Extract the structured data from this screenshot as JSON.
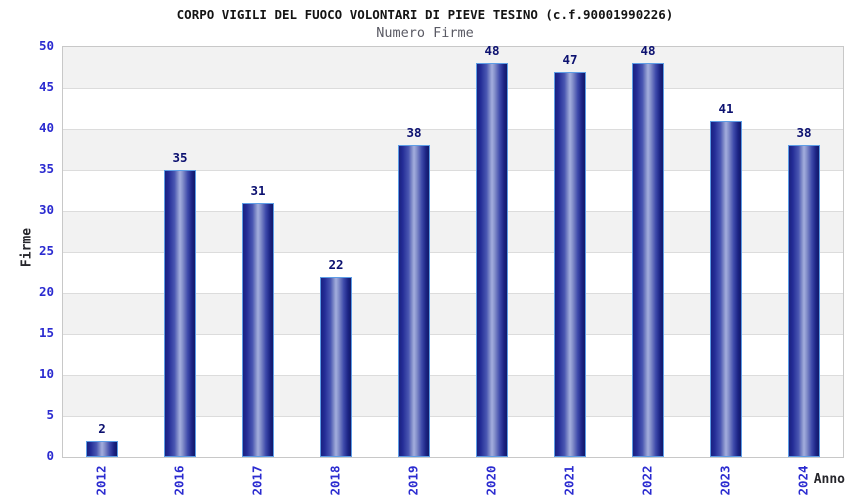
{
  "header": {
    "title": "CORPO VIGILI DEL FUOCO VOLONTARI DI PIEVE TESINO (c.f.90001990226)",
    "subtitle": "Numero Firme"
  },
  "chart_data": {
    "type": "bar",
    "title": "CORPO VIGILI DEL FUOCO VOLONTARI DI PIEVE TESINO (c.f.90001990226)",
    "subtitle": "Numero Firme",
    "categories": [
      "2012",
      "2016",
      "2017",
      "2018",
      "2019",
      "2020",
      "2021",
      "2022",
      "2023",
      "2024"
    ],
    "values": [
      2,
      35,
      31,
      22,
      38,
      48,
      47,
      48,
      41,
      38
    ],
    "xlabel": "Anno",
    "ylabel": "Firme",
    "ylim": [
      0,
      50
    ],
    "ytick_step": 5,
    "yticks": [
      0,
      5,
      10,
      15,
      20,
      25,
      30,
      35,
      40,
      45,
      50
    ],
    "grid": "horizontal-bands-alternating",
    "legend": "none",
    "value_labels": "above-bars",
    "colors": {
      "bar_dark": "#1a2180",
      "bar_light": "#a3aede",
      "bar_border": "#5d9de6",
      "axis_tick_label": "#2b2bd0",
      "value_label": "#0c1170",
      "band_gray": "#f2f2f2",
      "band_white": "#ffffff",
      "grid_line": "#dcdcdc",
      "plot_border": "#c8c8c8",
      "title_color": "#141414",
      "subtitle_color": "#5a5a64"
    }
  }
}
